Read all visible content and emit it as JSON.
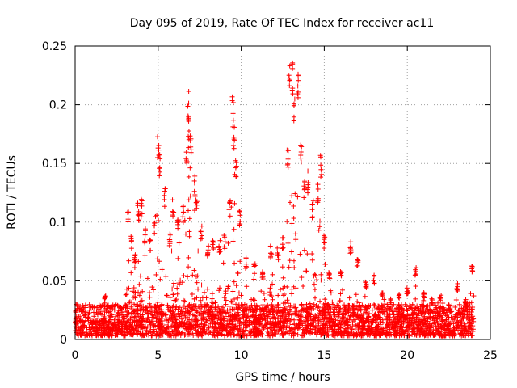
{
  "chart_data": {
    "type": "scatter",
    "title": "Day 095 of 2019, Rate Of TEC Index for receiver ac11",
    "xlabel": "GPS time / hours",
    "ylabel": "ROTI / TECUs",
    "xlim": [
      0,
      25
    ],
    "ylim": [
      0,
      0.25
    ],
    "xticks": [
      0,
      5,
      10,
      15,
      20,
      25
    ],
    "yticks": [
      0,
      0.05,
      0.1,
      0.15,
      0.2,
      0.25
    ],
    "xtick_labels": [
      "0",
      "5",
      "10",
      "15",
      "20",
      "25"
    ],
    "ytick_labels": [
      "0",
      "0.05",
      "0.1",
      "0.15",
      "0.2",
      "0.25"
    ],
    "grid": true,
    "marker": "+",
    "marker_color": "#ff0000",
    "series": [
      {
        "name": "ROTI",
        "peaks": [
          [
            0.4,
            0.028
          ],
          [
            1.8,
            0.038
          ],
          [
            3.2,
            0.11
          ],
          [
            3.4,
            0.09
          ],
          [
            3.6,
            0.075
          ],
          [
            3.8,
            0.118
          ],
          [
            4.0,
            0.12
          ],
          [
            4.2,
            0.095
          ],
          [
            4.5,
            0.088
          ],
          [
            4.8,
            0.105
          ],
          [
            5.0,
            0.18
          ],
          [
            5.1,
            0.16
          ],
          [
            5.4,
            0.13
          ],
          [
            5.7,
            0.09
          ],
          [
            5.9,
            0.12
          ],
          [
            6.2,
            0.11
          ],
          [
            6.5,
            0.115
          ],
          [
            6.7,
            0.165
          ],
          [
            6.8,
            0.217
          ],
          [
            6.85,
            0.19
          ],
          [
            6.95,
            0.175
          ],
          [
            7.2,
            0.14
          ],
          [
            7.3,
            0.12
          ],
          [
            7.6,
            0.098
          ],
          [
            8.0,
            0.08
          ],
          [
            8.3,
            0.085
          ],
          [
            8.7,
            0.085
          ],
          [
            9.0,
            0.09
          ],
          [
            9.3,
            0.12
          ],
          [
            9.5,
            0.208
          ],
          [
            9.55,
            0.182
          ],
          [
            9.7,
            0.16
          ],
          [
            9.9,
            0.11
          ],
          [
            10.3,
            0.07
          ],
          [
            10.8,
            0.065
          ],
          [
            11.3,
            0.06
          ],
          [
            11.8,
            0.08
          ],
          [
            12.2,
            0.078
          ],
          [
            12.5,
            0.09
          ],
          [
            12.8,
            0.17
          ],
          [
            12.9,
            0.238
          ],
          [
            13.1,
            0.24
          ],
          [
            13.2,
            0.21
          ],
          [
            13.4,
            0.23
          ],
          [
            13.6,
            0.175
          ],
          [
            13.8,
            0.135
          ],
          [
            14.0,
            0.145
          ],
          [
            14.3,
            0.12
          ],
          [
            14.6,
            0.135
          ],
          [
            14.8,
            0.16
          ],
          [
            15.0,
            0.09
          ],
          [
            15.3,
            0.06
          ],
          [
            16.0,
            0.06
          ],
          [
            16.6,
            0.084
          ],
          [
            17.0,
            0.07
          ],
          [
            17.5,
            0.05
          ],
          [
            18.0,
            0.055
          ],
          [
            18.5,
            0.04
          ],
          [
            19.0,
            0.035
          ],
          [
            19.5,
            0.04
          ],
          [
            20.0,
            0.045
          ],
          [
            20.5,
            0.062
          ],
          [
            21.0,
            0.04
          ],
          [
            21.5,
            0.035
          ],
          [
            22.0,
            0.038
          ],
          [
            22.5,
            0.03
          ],
          [
            23.0,
            0.048
          ],
          [
            23.5,
            0.035
          ],
          [
            23.9,
            0.063
          ]
        ],
        "baseline_range": [
          0.003,
          0.03
        ],
        "time_span": [
          0,
          24
        ]
      }
    ]
  }
}
